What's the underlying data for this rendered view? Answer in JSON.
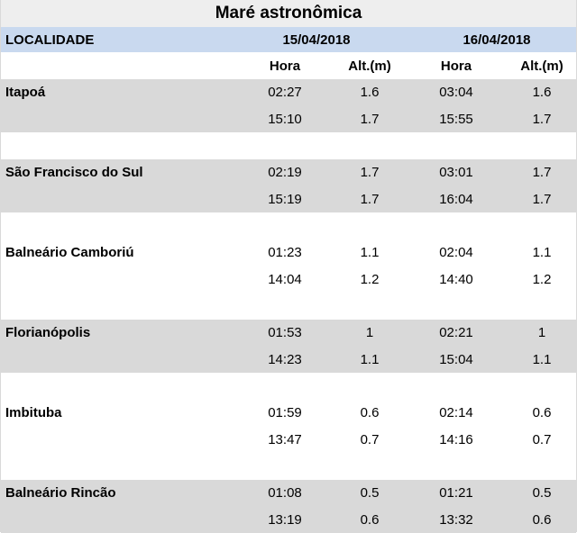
{
  "title": "Maré astronômica",
  "header": {
    "localidade": "LOCALIDADE",
    "date1": "15/04/2018",
    "date2": "16/04/2018"
  },
  "subheader": {
    "hora1": "Hora",
    "alt1": "Alt.(m)",
    "hora2": "Hora",
    "alt2": "Alt.(m)"
  },
  "locations": [
    {
      "name": "Itapoá",
      "rows": [
        {
          "hora1": "02:27",
          "alt1": "1.6",
          "hora2": "03:04",
          "alt2": "1.6"
        },
        {
          "hora1": "15:10",
          "alt1": "1.7",
          "hora2": "15:55",
          "alt2": "1.7"
        }
      ]
    },
    {
      "name": "São Francisco do Sul",
      "rows": [
        {
          "hora1": "02:19",
          "alt1": "1.7",
          "hora2": "03:01",
          "alt2": "1.7"
        },
        {
          "hora1": "15:19",
          "alt1": "1.7",
          "hora2": "16:04",
          "alt2": "1.7"
        }
      ]
    },
    {
      "name": "Balneário Camboriú",
      "rows": [
        {
          "hora1": "01:23",
          "alt1": "1.1",
          "hora2": "02:04",
          "alt2": "1.1"
        },
        {
          "hora1": "14:04",
          "alt1": "1.2",
          "hora2": "14:40",
          "alt2": "1.2"
        }
      ]
    },
    {
      "name": "Florianópolis",
      "rows": [
        {
          "hora1": "01:53",
          "alt1": "1",
          "hora2": "02:21",
          "alt2": "1"
        },
        {
          "hora1": "14:23",
          "alt1": "1.1",
          "hora2": "15:04",
          "alt2": "1.1"
        }
      ]
    },
    {
      "name": "Imbituba",
      "rows": [
        {
          "hora1": "01:59",
          "alt1": "0.6",
          "hora2": "02:14",
          "alt2": "0.6"
        },
        {
          "hora1": "13:47",
          "alt1": "0.7",
          "hora2": "14:16",
          "alt2": "0.7"
        }
      ]
    },
    {
      "name": "Balneário Rincão",
      "rows": [
        {
          "hora1": "01:08",
          "alt1": "0.5",
          "hora2": "01:21",
          "alt2": "0.5"
        },
        {
          "hora1": "13:19",
          "alt1": "0.6",
          "hora2": "13:32",
          "alt2": "0.6"
        }
      ]
    }
  ],
  "colors": {
    "title_bg": "#eeeeee",
    "header_bg": "#c9d9ef",
    "shaded_bg": "#d9d9d9"
  }
}
